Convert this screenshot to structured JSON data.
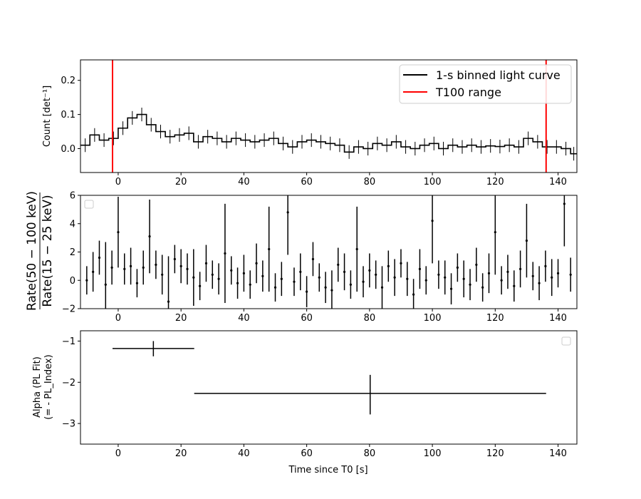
{
  "chart_data": [
    {
      "type": "line",
      "panel": "light-curve",
      "ylabel": "Count [det⁻¹]",
      "xlim": [
        -12,
        146
      ],
      "ylim": [
        -0.07,
        0.26
      ],
      "xticks": [
        0,
        20,
        40,
        60,
        80,
        100,
        120,
        140
      ],
      "yticks": [
        0.0,
        0.1,
        0.2
      ],
      "ytick_labels": [
        "0.0",
        "0.1",
        "0.2"
      ],
      "legend": {
        "placement": "upper-right",
        "entries": [
          "1-s binned light curve",
          "T100 range"
        ]
      },
      "series": [
        {
          "name": "1-s binned light curve",
          "color": "#000000",
          "step_x": [
            -12,
            -9,
            -6,
            -3,
            0,
            3,
            6,
            9,
            12,
            15,
            18,
            21,
            24,
            27,
            30,
            33,
            36,
            39,
            42,
            45,
            48,
            51,
            54,
            57,
            60,
            63,
            66,
            69,
            72,
            75,
            78,
            81,
            84,
            87,
            90,
            93,
            96,
            99,
            102,
            105,
            108,
            111,
            114,
            117,
            120,
            123,
            126,
            129,
            132,
            135,
            138,
            141,
            144
          ],
          "y": [
            0.01,
            0.04,
            0.025,
            0.03,
            0.06,
            0.09,
            0.1,
            0.07,
            0.05,
            0.035,
            0.04,
            0.045,
            0.02,
            0.035,
            0.03,
            0.02,
            0.03,
            0.025,
            0.02,
            0.025,
            0.03,
            0.015,
            0.005,
            0.02,
            0.025,
            0.02,
            0.015,
            0.01,
            -0.01,
            0.005,
            0.0,
            0.015,
            0.01,
            0.02,
            0.005,
            0.0,
            0.01,
            0.015,
            0.0,
            0.01,
            0.005,
            0.01,
            0.005,
            0.008,
            0.006,
            0.01,
            0.005,
            0.03,
            0.02,
            0.005,
            0.005,
            0.0,
            -0.015
          ]
        },
        {
          "name": "T100 range",
          "color": "#ff0000",
          "vlines_x": [
            -1.8,
            136.2
          ]
        }
      ]
    },
    {
      "type": "scatter",
      "panel": "hardness-ratio",
      "ylabel_numerator": "Rate(50 − 100 keV)",
      "ylabel_denominator": "Rate(15 − 25 keV)",
      "xlim": [
        -12,
        146
      ],
      "ylim": [
        -2,
        6
      ],
      "xticks": [
        0,
        20,
        40,
        60,
        80,
        100,
        120,
        140
      ],
      "yticks": [
        -2,
        0,
        2,
        4,
        6
      ],
      "points": [
        {
          "x": -10,
          "y": 0.0,
          "err": 1.0
        },
        {
          "x": -8,
          "y": 0.6,
          "err": 1.4
        },
        {
          "x": -6,
          "y": 1.6,
          "err": 1.2
        },
        {
          "x": -4,
          "y": -0.3,
          "err": 3.0
        },
        {
          "x": -2,
          "y": 0.9,
          "err": 1.2
        },
        {
          "x": 0,
          "y": 3.4,
          "err": 2.5
        },
        {
          "x": 2,
          "y": 0.8,
          "err": 1.1
        },
        {
          "x": 4,
          "y": 1.0,
          "err": 1.3
        },
        {
          "x": 6,
          "y": -0.2,
          "err": 1.0
        },
        {
          "x": 8,
          "y": 0.9,
          "err": 1.2
        },
        {
          "x": 10,
          "y": 3.1,
          "err": 2.6
        },
        {
          "x": 12,
          "y": 1.1,
          "err": 1.0
        },
        {
          "x": 14,
          "y": 0.4,
          "err": 1.4
        },
        {
          "x": 16,
          "y": -1.5,
          "err": 3.2
        },
        {
          "x": 18,
          "y": 1.5,
          "err": 1.0
        },
        {
          "x": 20,
          "y": 1.0,
          "err": 1.2
        },
        {
          "x": 22,
          "y": 0.8,
          "err": 1.1
        },
        {
          "x": 24,
          "y": 0.2,
          "err": 2.0
        },
        {
          "x": 26,
          "y": -0.4,
          "err": 1.0
        },
        {
          "x": 28,
          "y": 1.2,
          "err": 1.3
        },
        {
          "x": 30,
          "y": 0.4,
          "err": 1.0
        },
        {
          "x": 32,
          "y": 0.1,
          "err": 1.1
        },
        {
          "x": 34,
          "y": 1.9,
          "err": 3.5
        },
        {
          "x": 36,
          "y": 0.7,
          "err": 1.0
        },
        {
          "x": 38,
          "y": -0.2,
          "err": 1.1
        },
        {
          "x": 40,
          "y": 0.5,
          "err": 1.3
        },
        {
          "x": 42,
          "y": -0.3,
          "err": 1.0
        },
        {
          "x": 44,
          "y": 1.2,
          "err": 1.4
        },
        {
          "x": 46,
          "y": 0.3,
          "err": 1.1
        },
        {
          "x": 48,
          "y": 2.2,
          "err": 3.0
        },
        {
          "x": 50,
          "y": -0.5,
          "err": 1.0
        },
        {
          "x": 52,
          "y": 0.1,
          "err": 1.2
        },
        {
          "x": 54,
          "y": 4.8,
          "err": 3.0
        },
        {
          "x": 56,
          "y": -0.1,
          "err": 1.0
        },
        {
          "x": 58,
          "y": 0.6,
          "err": 1.3
        },
        {
          "x": 60,
          "y": -0.8,
          "err": 1.1
        },
        {
          "x": 62,
          "y": 1.5,
          "err": 1.2
        },
        {
          "x": 64,
          "y": 0.2,
          "err": 1.0
        },
        {
          "x": 66,
          "y": -0.5,
          "err": 1.1
        },
        {
          "x": 68,
          "y": -0.7,
          "err": 1.4
        },
        {
          "x": 70,
          "y": 1.1,
          "err": 1.2
        },
        {
          "x": 72,
          "y": 0.6,
          "err": 1.3
        },
        {
          "x": 74,
          "y": -0.3,
          "err": 1.0
        },
        {
          "x": 76,
          "y": 2.2,
          "err": 3.0
        },
        {
          "x": 78,
          "y": -0.1,
          "err": 1.1
        },
        {
          "x": 80,
          "y": 0.7,
          "err": 1.2
        },
        {
          "x": 82,
          "y": 0.4,
          "err": 1.0
        },
        {
          "x": 84,
          "y": -0.5,
          "err": 1.5
        },
        {
          "x": 86,
          "y": 1.0,
          "err": 1.1
        },
        {
          "x": 88,
          "y": 0.2,
          "err": 1.3
        },
        {
          "x": 90,
          "y": 1.2,
          "err": 1.0
        },
        {
          "x": 92,
          "y": 0.1,
          "err": 1.2
        },
        {
          "x": 94,
          "y": -1.0,
          "err": 1.1
        },
        {
          "x": 96,
          "y": 0.8,
          "err": 1.4
        },
        {
          "x": 98,
          "y": 0.0,
          "err": 1.0
        },
        {
          "x": 100,
          "y": 4.2,
          "err": 3.0
        },
        {
          "x": 102,
          "y": 0.4,
          "err": 1.0
        },
        {
          "x": 104,
          "y": 0.2,
          "err": 1.2
        },
        {
          "x": 106,
          "y": -0.6,
          "err": 1.1
        },
        {
          "x": 108,
          "y": 0.9,
          "err": 1.0
        },
        {
          "x": 110,
          "y": 0.1,
          "err": 1.3
        },
        {
          "x": 112,
          "y": -0.3,
          "err": 1.1
        },
        {
          "x": 114,
          "y": 1.1,
          "err": 1.2
        },
        {
          "x": 116,
          "y": -0.5,
          "err": 1.0
        },
        {
          "x": 118,
          "y": 0.5,
          "err": 1.4
        },
        {
          "x": 120,
          "y": 3.4,
          "err": 3.0
        },
        {
          "x": 122,
          "y": 0.0,
          "err": 1.0
        },
        {
          "x": 124,
          "y": 0.6,
          "err": 1.2
        },
        {
          "x": 126,
          "y": -0.4,
          "err": 1.1
        },
        {
          "x": 128,
          "y": 0.8,
          "err": 1.3
        },
        {
          "x": 130,
          "y": 2.8,
          "err": 2.6
        },
        {
          "x": 132,
          "y": 0.3,
          "err": 1.0
        },
        {
          "x": 134,
          "y": -0.2,
          "err": 1.2
        },
        {
          "x": 136,
          "y": 1.0,
          "err": 1.1
        },
        {
          "x": 138,
          "y": 0.2,
          "err": 1.3
        },
        {
          "x": 140,
          "y": 0.5,
          "err": 1.0
        },
        {
          "x": 142,
          "y": 5.4,
          "err": 3.0
        },
        {
          "x": 144,
          "y": 0.4,
          "err": 1.2
        }
      ]
    },
    {
      "type": "scatter",
      "panel": "alpha",
      "ylabel_line1": "Alpha (PL Fit)",
      "ylabel_line2": "(= - PL_Index)",
      "xlabel": "Time since T0 [s]",
      "xlim": [
        -12,
        146
      ],
      "ylim": [
        -3.5,
        -0.75
      ],
      "xticks": [
        0,
        20,
        40,
        60,
        80,
        100,
        120,
        140
      ],
      "yticks": [
        -3,
        -2,
        -1
      ],
      "points": [
        {
          "x": 11.2,
          "x_lo": -1.8,
          "x_hi": 24.2,
          "y": -1.18,
          "y_lo": -1.37,
          "y_hi": -1.0
        },
        {
          "x": 80.2,
          "x_lo": 24.2,
          "x_hi": 136.2,
          "y": -2.27,
          "y_lo": -2.78,
          "y_hi": -1.82
        }
      ]
    }
  ]
}
